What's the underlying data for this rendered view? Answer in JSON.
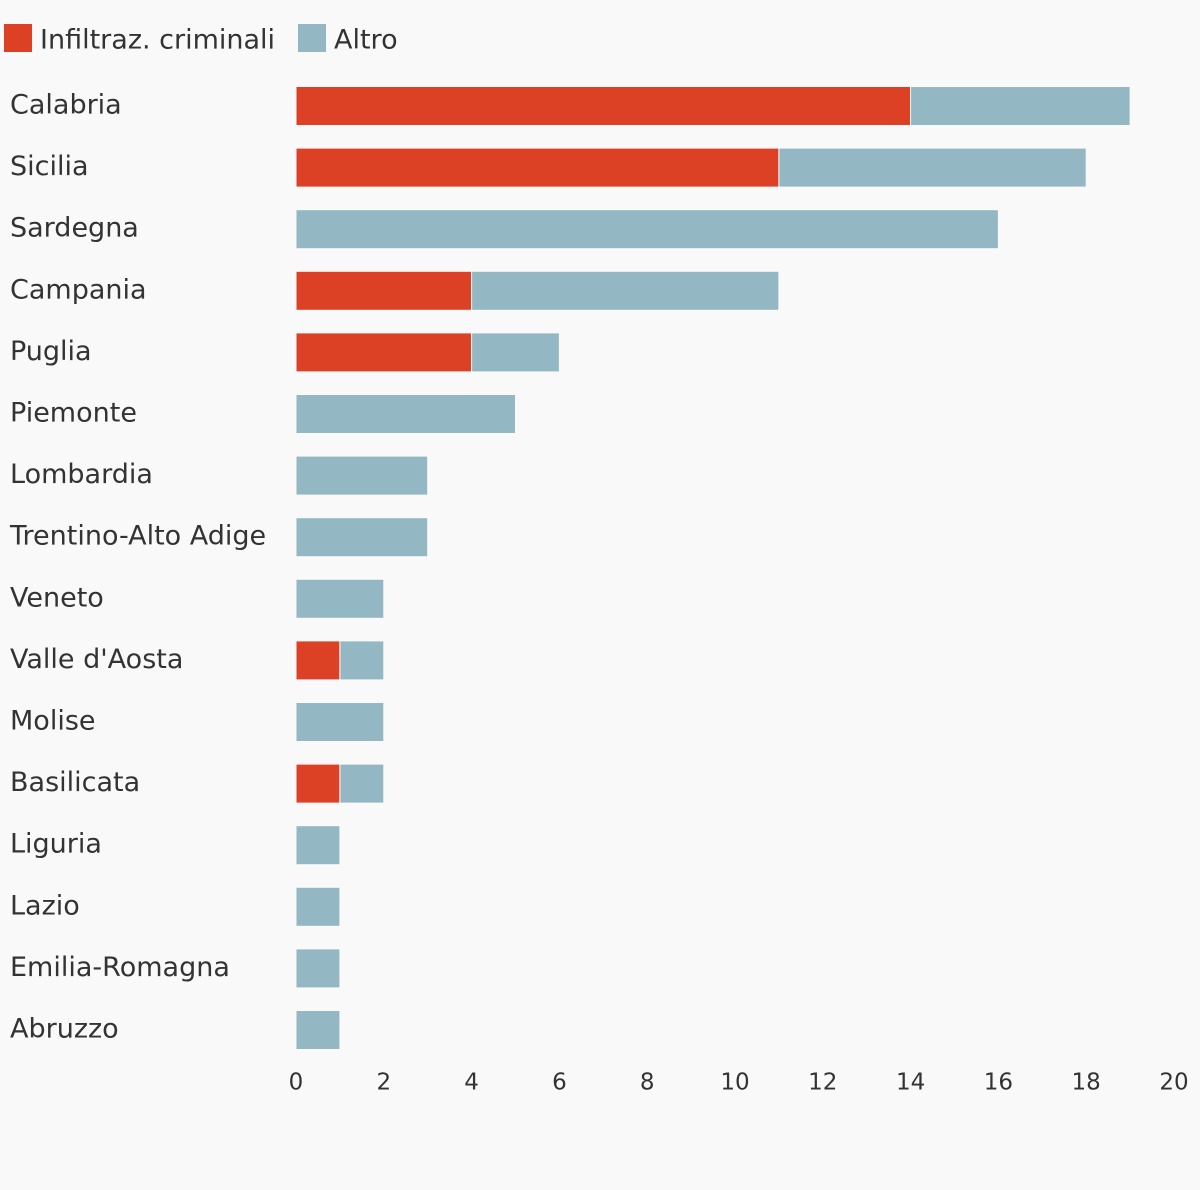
{
  "chart_data": {
    "type": "bar",
    "orientation": "horizontal",
    "stacked": true,
    "title": "",
    "xlabel": "",
    "ylabel": "",
    "xlim": [
      0,
      20
    ],
    "xticks": [
      0,
      2,
      4,
      6,
      8,
      10,
      12,
      14,
      16,
      18,
      20
    ],
    "grid": false,
    "legend_position": "top-left",
    "categories": [
      "Calabria",
      "Sicilia",
      "Sardegna",
      "Campania",
      "Puglia",
      "Piemonte",
      "Lombardia",
      "Trentino-Alto Adige",
      "Veneto",
      "Valle d'Aosta",
      "Molise",
      "Basilicata",
      "Liguria",
      "Lazio",
      "Emilia-Romagna",
      "Abruzzo"
    ],
    "series": [
      {
        "name": "Infiltraz. criminali",
        "color": "#dd4125",
        "values": [
          14,
          11,
          0,
          4,
          4,
          0,
          0,
          0,
          0,
          1,
          0,
          1,
          0,
          0,
          0,
          0
        ]
      },
      {
        "name": "Altro",
        "color": "#94b8c3",
        "values": [
          5,
          7,
          16,
          7,
          2,
          5,
          3,
          3,
          2,
          1,
          2,
          1,
          1,
          1,
          1,
          1
        ]
      }
    ]
  }
}
